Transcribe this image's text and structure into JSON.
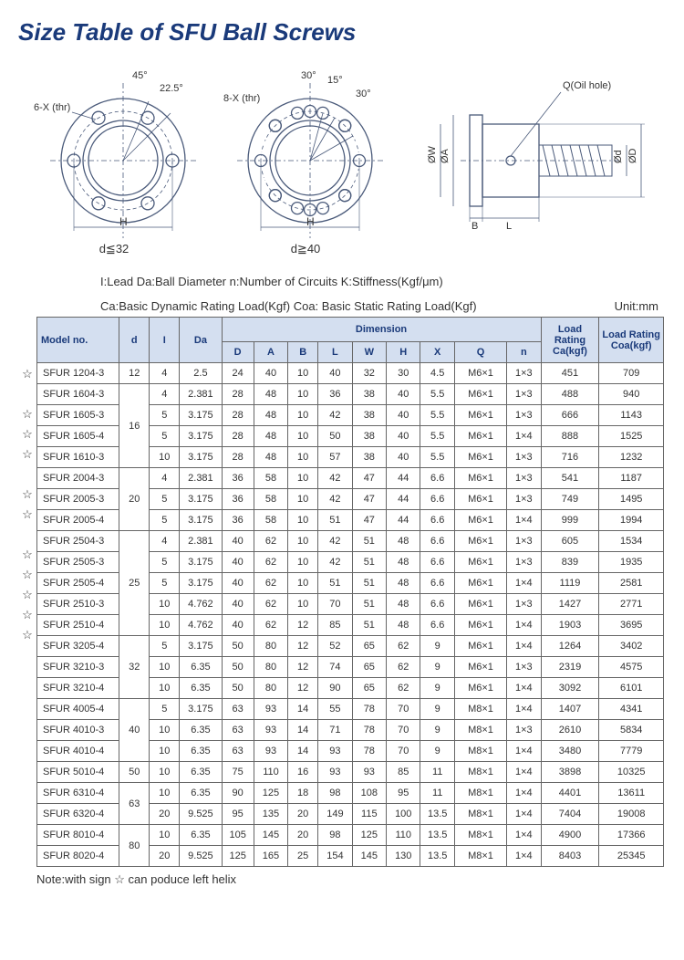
{
  "title": "Size Table of SFU Ball Screws",
  "diagrams": {
    "left": {
      "angle1": "45°",
      "angle2": "22.5°",
      "thr": "6-X (thr)",
      "h": "H",
      "caption": "d≦32"
    },
    "mid": {
      "angle1": "30°",
      "angle2": "15°",
      "angle3": "30°",
      "thr": "8-X (thr)",
      "h": "H",
      "caption": "d≧40"
    },
    "right": {
      "oil": "Q(Oil hole)",
      "oa": "ØA",
      "ow": "ØW",
      "b": "B",
      "l": "L",
      "od": "Ød",
      "oD": "ØD"
    }
  },
  "legend1": "I:Lead   Da:Ball Diameter   n:Number of Circuits   K:Stiffness(Kgf/μm)",
  "legend2": "Ca:Basic Dynamic Rating Load(Kgf)   Coa: Basic Static Rating Load(Kgf)",
  "unit": "Unit:mm",
  "headers": {
    "model": "Model no.",
    "d": "d",
    "i": "I",
    "da": "Da",
    "dimension": "Dimension",
    "D": "D",
    "A": "A",
    "B": "B",
    "L": "L",
    "W": "W",
    "H": "H",
    "X": "X",
    "Q": "Q",
    "n": "n",
    "ca": "Load Rating Ca(kgf)",
    "coa": "Load Rating Coa(kgf)"
  },
  "col_widths": {
    "model": 82,
    "d": 30,
    "i": 30,
    "da": 42,
    "D": 32,
    "A": 34,
    "B": 30,
    "L": 34,
    "W": 34,
    "H": 34,
    "X": 34,
    "Q": 52,
    "n": 34,
    "ca": 58,
    "coa": 64
  },
  "d_groups": [
    {
      "d": "12",
      "count": 1
    },
    {
      "d": "16",
      "count": 4
    },
    {
      "d": "20",
      "count": 3
    },
    {
      "d": "25",
      "count": 5
    },
    {
      "d": "32",
      "count": 3
    },
    {
      "d": "40",
      "count": 3
    },
    {
      "d": "50",
      "count": 1
    },
    {
      "d": "63",
      "count": 2
    },
    {
      "d": "80",
      "count": 2
    }
  ],
  "rows": [
    {
      "star": true,
      "model": "SFUR  1204-3",
      "i": "4",
      "da": "2.5",
      "D": "24",
      "A": "40",
      "B": "10",
      "L": "40",
      "W": "32",
      "H": "30",
      "X": "4.5",
      "Q": "M6×1",
      "n": "1×3",
      "ca": "451",
      "coa": "709"
    },
    {
      "star": false,
      "model": "SFUR  1604-3",
      "i": "4",
      "da": "2.381",
      "D": "28",
      "A": "48",
      "B": "10",
      "L": "36",
      "W": "38",
      "H": "40",
      "X": "5.5",
      "Q": "M6×1",
      "n": "1×3",
      "ca": "488",
      "coa": "940"
    },
    {
      "star": true,
      "model": "SFUR  1605-3",
      "i": "5",
      "da": "3.175",
      "D": "28",
      "A": "48",
      "B": "10",
      "L": "42",
      "W": "38",
      "H": "40",
      "X": "5.5",
      "Q": "M6×1",
      "n": "1×3",
      "ca": "666",
      "coa": "1143"
    },
    {
      "star": true,
      "model": "SFUR  1605-4",
      "i": "5",
      "da": "3.175",
      "D": "28",
      "A": "48",
      "B": "10",
      "L": "50",
      "W": "38",
      "H": "40",
      "X": "5.5",
      "Q": "M6×1",
      "n": "1×4",
      "ca": "888",
      "coa": "1525"
    },
    {
      "star": true,
      "model": "SFUR  1610-3",
      "i": "10",
      "da": "3.175",
      "D": "28",
      "A": "48",
      "B": "10",
      "L": "57",
      "W": "38",
      "H": "40",
      "X": "5.5",
      "Q": "M6×1",
      "n": "1×3",
      "ca": "716",
      "coa": "1232"
    },
    {
      "star": false,
      "model": "SFUR  2004-3",
      "i": "4",
      "da": "2.381",
      "D": "36",
      "A": "58",
      "B": "10",
      "L": "42",
      "W": "47",
      "H": "44",
      "X": "6.6",
      "Q": "M6×1",
      "n": "1×3",
      "ca": "541",
      "coa": "1187"
    },
    {
      "star": true,
      "model": "SFUR  2005-3",
      "i": "5",
      "da": "3.175",
      "D": "36",
      "A": "58",
      "B": "10",
      "L": "42",
      "W": "47",
      "H": "44",
      "X": "6.6",
      "Q": "M6×1",
      "n": "1×3",
      "ca": "749",
      "coa": "1495"
    },
    {
      "star": true,
      "model": "SFUR  2005-4",
      "i": "5",
      "da": "3.175",
      "D": "36",
      "A": "58",
      "B": "10",
      "L": "51",
      "W": "47",
      "H": "44",
      "X": "6.6",
      "Q": "M6×1",
      "n": "1×4",
      "ca": "999",
      "coa": "1994"
    },
    {
      "star": false,
      "model": "SFUR  2504-3",
      "i": "4",
      "da": "2.381",
      "D": "40",
      "A": "62",
      "B": "10",
      "L": "42",
      "W": "51",
      "H": "48",
      "X": "6.6",
      "Q": "M6×1",
      "n": "1×3",
      "ca": "605",
      "coa": "1534"
    },
    {
      "star": true,
      "model": "SFUR  2505-3",
      "i": "5",
      "da": "3.175",
      "D": "40",
      "A": "62",
      "B": "10",
      "L": "42",
      "W": "51",
      "H": "48",
      "X": "6.6",
      "Q": "M6×1",
      "n": "1×3",
      "ca": "839",
      "coa": "1935"
    },
    {
      "star": true,
      "model": "SFUR  2505-4",
      "i": "5",
      "da": "3.175",
      "D": "40",
      "A": "62",
      "B": "10",
      "L": "51",
      "W": "51",
      "H": "48",
      "X": "6.6",
      "Q": "M6×1",
      "n": "1×4",
      "ca": "1119",
      "coa": "2581"
    },
    {
      "star": true,
      "model": "SFUR  2510-3",
      "i": "10",
      "da": "4.762",
      "D": "40",
      "A": "62",
      "B": "10",
      "L": "70",
      "W": "51",
      "H": "48",
      "X": "6.6",
      "Q": "M6×1",
      "n": "1×3",
      "ca": "1427",
      "coa": "2771"
    },
    {
      "star": true,
      "model": "SFUR  2510-4",
      "i": "10",
      "da": "4.762",
      "D": "40",
      "A": "62",
      "B": "12",
      "L": "85",
      "W": "51",
      "H": "48",
      "X": "6.6",
      "Q": "M6×1",
      "n": "1×4",
      "ca": "1903",
      "coa": "3695"
    },
    {
      "star": true,
      "model": "SFUR  3205-4",
      "i": "5",
      "da": "3.175",
      "D": "50",
      "A": "80",
      "B": "12",
      "L": "52",
      "W": "65",
      "H": "62",
      "X": "9",
      "Q": "M6×1",
      "n": "1×4",
      "ca": "1264",
      "coa": "3402"
    },
    {
      "star": false,
      "model": "SFUR  3210-3",
      "i": "10",
      "da": "6.35",
      "D": "50",
      "A": "80",
      "B": "12",
      "L": "74",
      "W": "65",
      "H": "62",
      "X": "9",
      "Q": "M6×1",
      "n": "1×3",
      "ca": "2319",
      "coa": "4575"
    },
    {
      "star": false,
      "model": "SFUR  3210-4",
      "i": "10",
      "da": "6.35",
      "D": "50",
      "A": "80",
      "B": "12",
      "L": "90",
      "W": "65",
      "H": "62",
      "X": "9",
      "Q": "M6×1",
      "n": "1×4",
      "ca": "3092",
      "coa": "6101"
    },
    {
      "star": false,
      "model": "SFUR  4005-4",
      "i": "5",
      "da": "3.175",
      "D": "63",
      "A": "93",
      "B": "14",
      "L": "55",
      "W": "78",
      "H": "70",
      "X": "9",
      "Q": "M8×1",
      "n": "1×4",
      "ca": "1407",
      "coa": "4341"
    },
    {
      "star": false,
      "model": "SFUR  4010-3",
      "i": "10",
      "da": "6.35",
      "D": "63",
      "A": "93",
      "B": "14",
      "L": "71",
      "W": "78",
      "H": "70",
      "X": "9",
      "Q": "M8×1",
      "n": "1×3",
      "ca": "2610",
      "coa": "5834"
    },
    {
      "star": false,
      "model": "SFUR  4010-4",
      "i": "10",
      "da": "6.35",
      "D": "63",
      "A": "93",
      "B": "14",
      "L": "93",
      "W": "78",
      "H": "70",
      "X": "9",
      "Q": "M8×1",
      "n": "1×4",
      "ca": "3480",
      "coa": "7779"
    },
    {
      "star": false,
      "model": "SFUR  5010-4",
      "i": "10",
      "da": "6.35",
      "D": "75",
      "A": "110",
      "B": "16",
      "L": "93",
      "W": "93",
      "H": "85",
      "X": "11",
      "Q": "M8×1",
      "n": "1×4",
      "ca": "3898",
      "coa": "10325"
    },
    {
      "star": false,
      "model": "SFUR  6310-4",
      "i": "10",
      "da": "6.35",
      "D": "90",
      "A": "125",
      "B": "18",
      "L": "98",
      "W": "108",
      "H": "95",
      "X": "11",
      "Q": "M8×1",
      "n": "1×4",
      "ca": "4401",
      "coa": "13611"
    },
    {
      "star": false,
      "model": "SFUR  6320-4",
      "i": "20",
      "da": "9.525",
      "D": "95",
      "A": "135",
      "B": "20",
      "L": "149",
      "W": "115",
      "H": "100",
      "X": "13.5",
      "Q": "M8×1",
      "n": "1×4",
      "ca": "7404",
      "coa": "19008"
    },
    {
      "star": false,
      "model": "SFUR  8010-4",
      "i": "10",
      "da": "6.35",
      "D": "105",
      "A": "145",
      "B": "20",
      "L": "98",
      "W": "125",
      "H": "110",
      "X": "13.5",
      "Q": "M8×1",
      "n": "1×4",
      "ca": "4900",
      "coa": "17366"
    },
    {
      "star": false,
      "model": "SFUR  8020-4",
      "i": "20",
      "da": "9.525",
      "D": "125",
      "A": "165",
      "B": "25",
      "L": "154",
      "W": "145",
      "H": "130",
      "X": "13.5",
      "Q": "M8×1",
      "n": "1×4",
      "ca": "8403",
      "coa": "25345"
    }
  ],
  "note": "Note:with sign ☆ can poduce left helix"
}
